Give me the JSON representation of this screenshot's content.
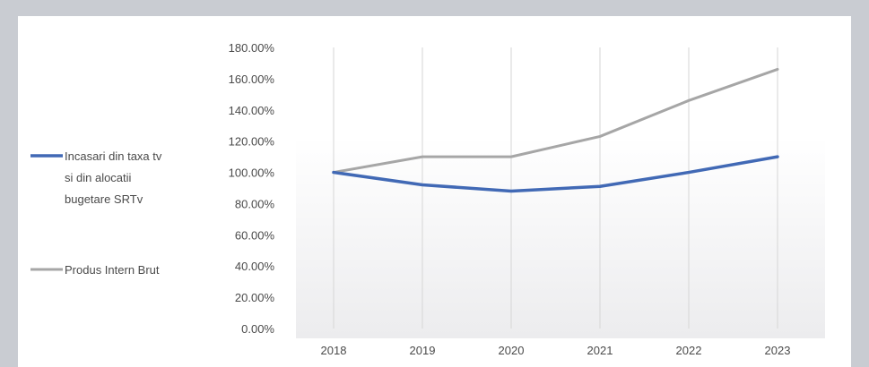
{
  "chart_data": {
    "type": "line",
    "title": "",
    "xlabel": "",
    "ylabel": "",
    "categories": [
      "2018",
      "2019",
      "2020",
      "2021",
      "2022",
      "2023"
    ],
    "ylim": [
      0,
      180
    ],
    "yticks": [
      "0.00%",
      "20.00%",
      "40.00%",
      "60.00%",
      "80.00%",
      "100.00%",
      "120.00%",
      "140.00%",
      "160.00%",
      "180.00%"
    ],
    "grid": "vertical",
    "legend_position": "left",
    "series": [
      {
        "name": "Incasari din taxa tv si din alocatii bugetare SRTv",
        "name_lines": [
          "Incasari din taxa tv",
          "si din alocatii",
          "bugetare SRTv"
        ],
        "color": "#4169b5",
        "values": [
          100,
          92,
          88,
          91,
          100,
          110
        ]
      },
      {
        "name": "Produs Intern Brut",
        "name_lines": [
          "Produs Intern Brut"
        ],
        "color": "#a6a6a6",
        "values": [
          100,
          110,
          110,
          123,
          146,
          166
        ]
      }
    ]
  }
}
